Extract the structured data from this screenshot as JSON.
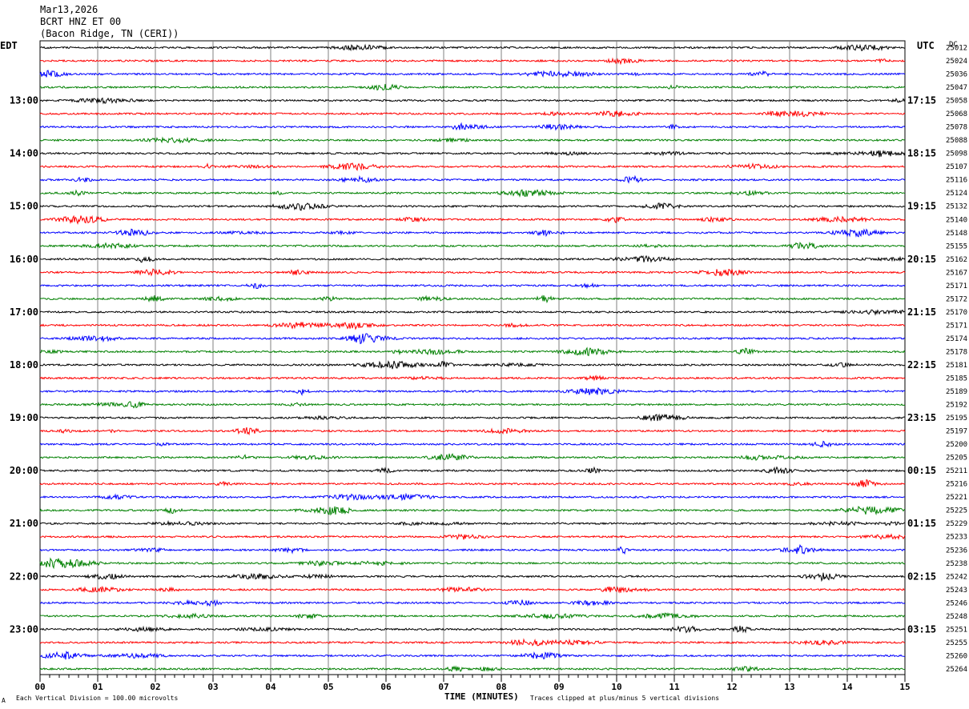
{
  "header": {
    "date": "Mar13,2026",
    "channel": "BCRT HNZ ET 00",
    "location": "(Bacon Ridge, TN (CERI))"
  },
  "left_timezone": "EDT",
  "right_timezone": "UTC",
  "dc_label": "DC",
  "chart_data": {
    "type": "line",
    "xlabel": "TIME (MINUTES)",
    "xlim": [
      0,
      15
    ],
    "x_ticks": [
      "00",
      "01",
      "02",
      "03",
      "04",
      "05",
      "06",
      "07",
      "08",
      "09",
      "10",
      "11",
      "12",
      "13",
      "14",
      "15"
    ],
    "left_hour_labels": [
      "13:00",
      "14:00",
      "15:00",
      "16:00",
      "17:00",
      "18:00",
      "19:00",
      "20:00",
      "21:00",
      "22:00",
      "23:00"
    ],
    "right_hour_labels": [
      "17:15",
      "18:15",
      "19:15",
      "20:15",
      "21:15",
      "22:15",
      "23:15",
      "00:15",
      "01:15",
      "02:15",
      "03:15"
    ],
    "trace_colors": [
      "#000000",
      "#ff0000",
      "#0000ff",
      "#008000"
    ],
    "dc_offsets": [
      "25012",
      "25024",
      "25036",
      "25047",
      "25058",
      "25068",
      "25078",
      "25088",
      "25098",
      "25107",
      "25116",
      "25124",
      "25132",
      "25140",
      "25148",
      "25155",
      "25162",
      "25167",
      "25171",
      "25172",
      "25170",
      "25171",
      "25174",
      "25178",
      "25181",
      "25185",
      "25189",
      "25192",
      "25195",
      "25197",
      "25200",
      "25205",
      "25211",
      "25216",
      "25221",
      "25225",
      "25229",
      "25233",
      "25236",
      "25238",
      "25242",
      "25243",
      "25246",
      "25248",
      "25251",
      "25255",
      "25260",
      "25264"
    ],
    "trace_count": 48
  },
  "footer": {
    "scale_note": "Each Vertical Division = 100.00 microvolts",
    "clip_note": "Traces clipped at plus/minus 5 vertical divisions",
    "corner_mark": "A"
  }
}
